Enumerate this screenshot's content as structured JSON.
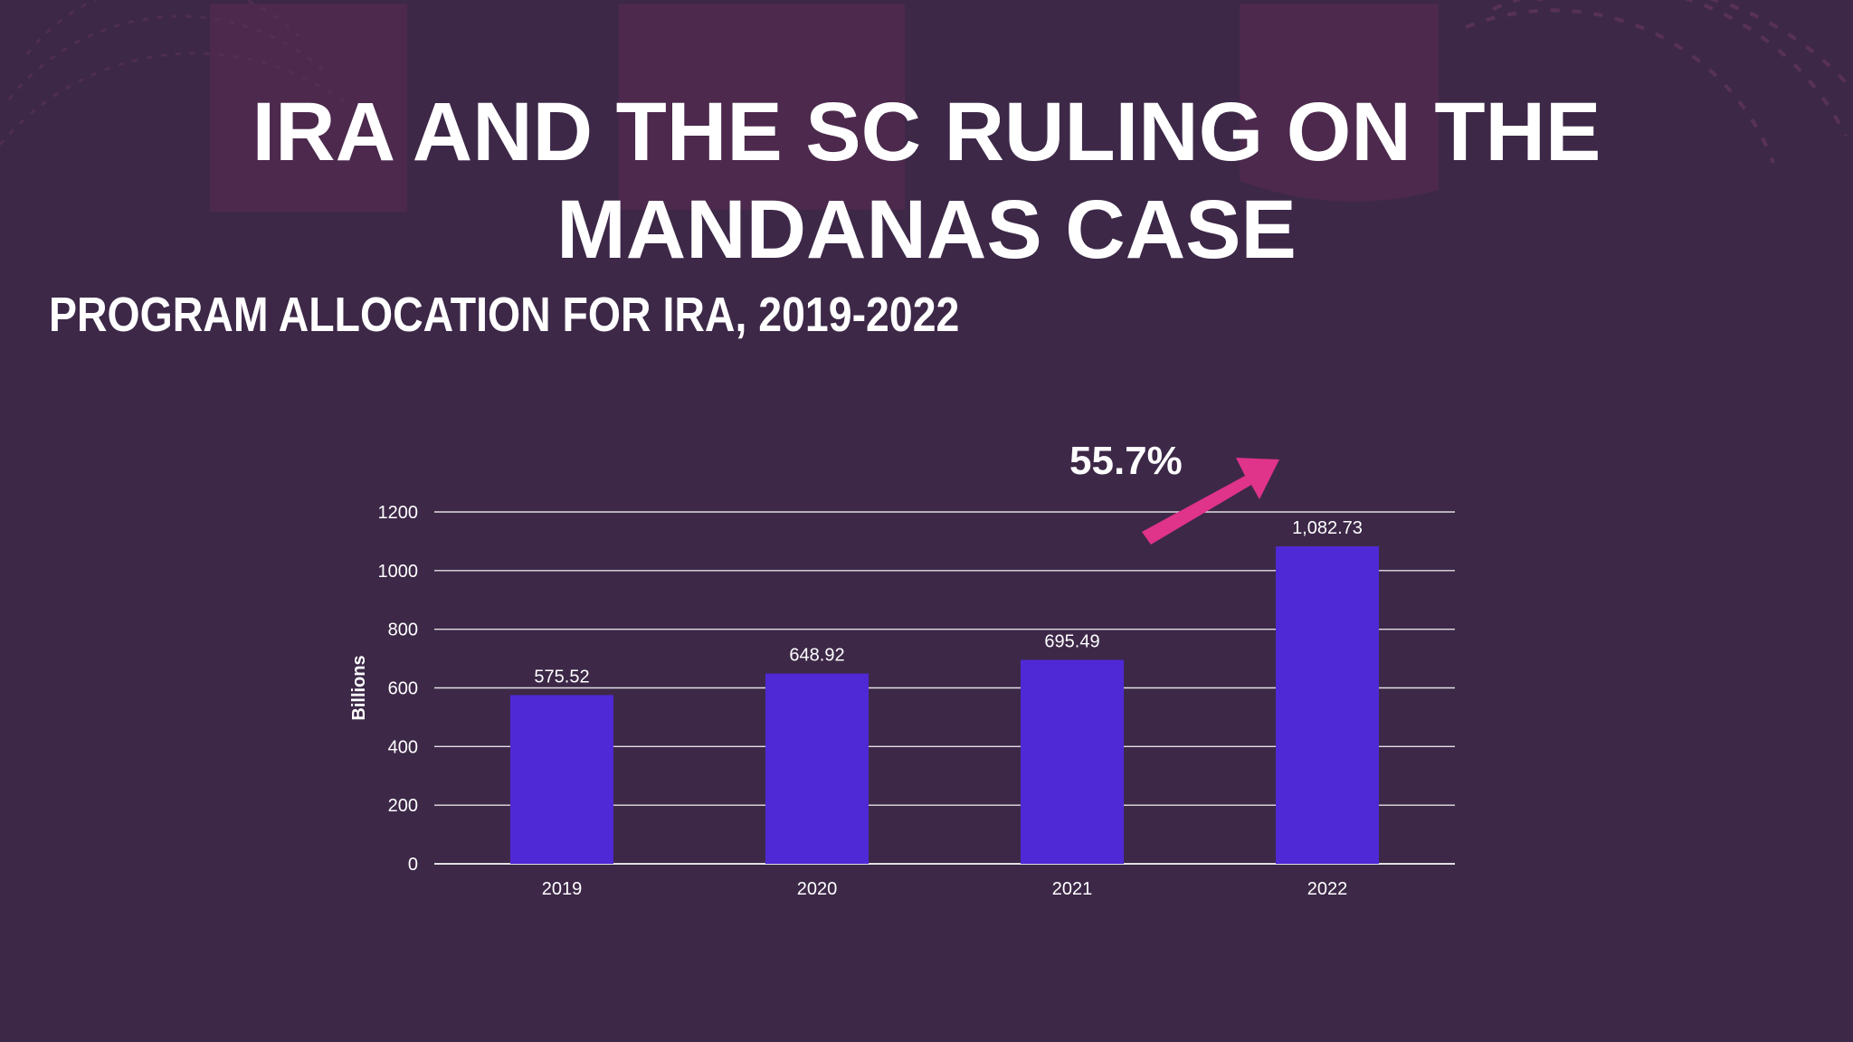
{
  "slide": {
    "title_line1": "IRA AND THE SC RULING ON THE",
    "title_line2": "MANDANAS CASE",
    "subtitle": "PROGRAM ALLOCATION FOR IRA, 2019-2022",
    "annotation": "55.7%"
  },
  "colors": {
    "background": "#3d2848",
    "bar": "#5029d6",
    "arrow": "#e0338a",
    "text": "#ffffff",
    "grid": "#ffffff"
  },
  "chart_data": {
    "type": "bar",
    "categories": [
      "2019",
      "2020",
      "2021",
      "2022"
    ],
    "values": [
      575.52,
      648.92,
      695.49,
      1082.73
    ],
    "data_labels": [
      "575.52",
      "648.92",
      "695.49",
      "1,082.73"
    ],
    "ylabel": "Billions",
    "ylim": [
      0,
      1200
    ],
    "yticks": [
      "0",
      "200",
      "400",
      "600",
      "800",
      "1000",
      "1200"
    ],
    "grid": true,
    "annotation": "55.7%"
  }
}
